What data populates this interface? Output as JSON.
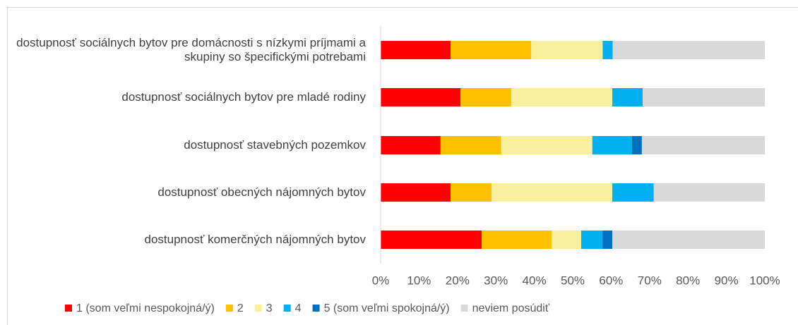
{
  "chart_data": {
    "type": "stacked_barh",
    "categories": [
      "dostupnosť sociálnych bytov pre domácnosti s nízkymi príjmami a skupiny so špecifickými potrebami",
      "dostupnosť sociálnych bytov pre mladé rodiny",
      "dostupnosť stavebných pozemkov",
      "dostupnosť obecných nájomných bytov",
      "dostupnosť komerčných nájomných bytov"
    ],
    "series": [
      {
        "name": "1 (som veľmi nespokojná/ý)",
        "color": "#ff0000",
        "values": [
          18.2,
          20.8,
          15.6,
          18.2,
          26.3
        ]
      },
      {
        "name": "2",
        "color": "#ffc000",
        "values": [
          21.0,
          13.2,
          15.8,
          10.7,
          18.2
        ]
      },
      {
        "name": "3",
        "color": "#f8f09c",
        "values": [
          18.6,
          26.3,
          23.7,
          31.4,
          7.7
        ]
      },
      {
        "name": "4",
        "color": "#00b0f0",
        "values": [
          2.6,
          7.9,
          10.3,
          10.8,
          5.5
        ]
      },
      {
        "name": "5 (som veľmi spokojná/ý)",
        "color": "#0070c0",
        "values": [
          0,
          0,
          2.6,
          0,
          2.6
        ]
      },
      {
        "name": "neviem posúdiť",
        "color": "#d9d9d9",
        "values": [
          39.6,
          31.8,
          32.0,
          28.9,
          39.7
        ]
      }
    ],
    "xlim": [
      0,
      100
    ],
    "xticks": [
      {
        "value": 0,
        "label": "0%"
      },
      {
        "value": 10,
        "label": "10%"
      },
      {
        "value": 20,
        "label": "20%"
      },
      {
        "value": 30,
        "label": "30%"
      },
      {
        "value": 40,
        "label": "40%"
      },
      {
        "value": 50,
        "label": "50%"
      },
      {
        "value": 60,
        "label": "60%"
      },
      {
        "value": 70,
        "label": "70%"
      },
      {
        "value": 80,
        "label": "80%"
      },
      {
        "value": 90,
        "label": "90%"
      },
      {
        "value": 100,
        "label": "100%"
      }
    ],
    "legend": "bottom"
  }
}
